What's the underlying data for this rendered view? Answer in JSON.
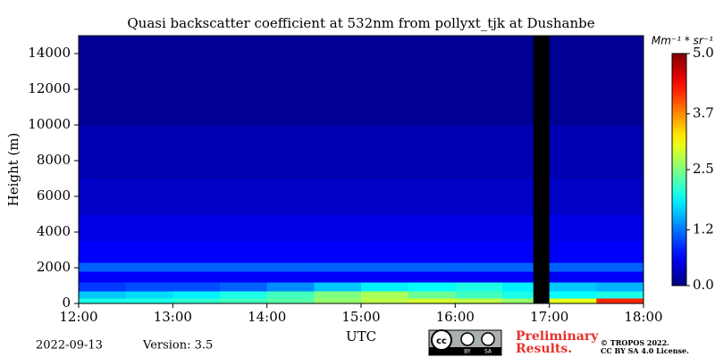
{
  "chart_data": {
    "type": "heatmap",
    "title": "Quasi backscatter coefficient at 532nm from pollyxt_tjk at Dushanbe",
    "xlabel": "UTC",
    "ylabel": "Height (m)",
    "xlim": [
      12,
      18
    ],
    "xticks": [
      {
        "value": 12,
        "label": "12:00"
      },
      {
        "value": 13,
        "label": "13:00"
      },
      {
        "value": 14,
        "label": "14:00"
      },
      {
        "value": 15,
        "label": "15:00"
      },
      {
        "value": 16,
        "label": "16:00"
      },
      {
        "value": 17,
        "label": "17:00"
      },
      {
        "value": 18,
        "label": "18:00"
      }
    ],
    "ylim": [
      0,
      15000
    ],
    "yticks": [
      0,
      2000,
      4000,
      6000,
      8000,
      10000,
      12000,
      14000
    ],
    "x_edges": [
      12,
      12.5,
      13,
      13.5,
      14,
      14.5,
      15,
      15.5,
      16,
      16.5,
      16.83,
      17,
      17.5,
      18
    ],
    "y_edges": [
      0,
      300,
      700,
      1200,
      1800,
      2300,
      3500,
      5000,
      7000,
      10000,
      15000
    ],
    "z": [
      [
        2.0,
        2.0,
        2.1,
        2.2,
        2.3,
        2.6,
        2.8,
        2.9,
        2.8,
        2.6,
        null,
        3.0,
        4.2
      ],
      [
        1.6,
        1.7,
        1.8,
        2.0,
        2.2,
        2.5,
        2.7,
        2.4,
        2.2,
        2.0,
        null,
        1.9,
        2.0
      ],
      [
        0.9,
        1.0,
        1.0,
        1.1,
        1.3,
        1.6,
        1.8,
        1.9,
        2.0,
        1.8,
        null,
        1.6,
        1.5
      ],
      [
        0.6,
        0.6,
        0.6,
        0.6,
        0.6,
        0.6,
        0.6,
        0.6,
        0.6,
        0.6,
        null,
        0.6,
        0.6
      ],
      [
        1.1,
        1.1,
        1.1,
        1.1,
        1.1,
        1.1,
        1.1,
        1.1,
        1.1,
        1.1,
        null,
        1.1,
        1.1
      ],
      [
        0.6,
        0.6,
        0.6,
        0.6,
        0.6,
        0.6,
        0.6,
        0.6,
        0.6,
        0.6,
        null,
        0.6,
        0.6
      ],
      [
        0.5,
        0.5,
        0.5,
        0.5,
        0.5,
        0.5,
        0.5,
        0.5,
        0.5,
        0.5,
        null,
        0.5,
        0.5
      ],
      [
        0.35,
        0.35,
        0.35,
        0.35,
        0.35,
        0.35,
        0.35,
        0.35,
        0.35,
        0.35,
        null,
        0.35,
        0.35
      ],
      [
        0.25,
        0.25,
        0.25,
        0.25,
        0.25,
        0.25,
        0.25,
        0.25,
        0.25,
        0.25,
        null,
        0.25,
        0.25
      ],
      [
        0.1,
        0.1,
        0.1,
        0.1,
        0.1,
        0.1,
        0.1,
        0.1,
        0.1,
        0.1,
        null,
        0.1,
        0.1
      ]
    ],
    "colormap": "jet",
    "clim": [
      0,
      5
    ],
    "cticks": [
      {
        "value": 0,
        "label": "0.0"
      },
      {
        "value": 1.2,
        "label": "1.2"
      },
      {
        "value": 2.5,
        "label": "2.5"
      },
      {
        "value": 3.7,
        "label": "3.7"
      },
      {
        "value": 5,
        "label": "5.0"
      }
    ],
    "colorbar_label": "Mm⁻¹ * sr⁻¹",
    "date": "2022-09-13",
    "version": "Version: 3.5",
    "preliminary": [
      "Preliminary",
      "Results."
    ],
    "license": [
      "© TROPOS 2022.",
      "CC BY SA 4.0 License."
    ],
    "badge": [
      "cc",
      "BY",
      "SA"
    ]
  }
}
